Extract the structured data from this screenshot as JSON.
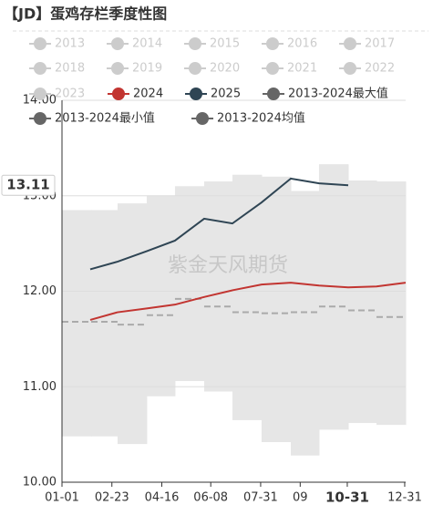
{
  "chart_data": {
    "type": "line",
    "title": "【JD】蛋鸡存栏季度性图",
    "watermark": "紫金天风期货",
    "legend_inactive": [
      "2013",
      "2014",
      "2015",
      "2016",
      "2017",
      "2018",
      "2019",
      "2020",
      "2021",
      "2022",
      "2023"
    ],
    "inactive_color": "#cccccc",
    "xlim": [
      0,
      365
    ],
    "xticks": [
      {
        "value": 0,
        "label": "01-01"
      },
      {
        "value": 53,
        "label": "02-23"
      },
      {
        "value": 106,
        "label": "04-16"
      },
      {
        "value": 158,
        "label": "06-08"
      },
      {
        "value": 211,
        "label": "07-31"
      },
      {
        "value": 253,
        "label": "09"
      },
      {
        "value": 303,
        "label": "10-31"
      },
      {
        "value": 364,
        "label": "12-31"
      }
    ],
    "ylim": [
      10,
      14
    ],
    "yticks": [
      {
        "value": 10,
        "label": "10.00"
      },
      {
        "value": 11,
        "label": "11.00"
      },
      {
        "value": 12,
        "label": "12.00"
      },
      {
        "value": 13,
        "label": "13.00"
      },
      {
        "value": 14,
        "label": "14.00"
      }
    ],
    "grid": true,
    "x": [
      30,
      59,
      90,
      120,
      151,
      181,
      212,
      243,
      273,
      304,
      334,
      365
    ],
    "bins": [
      0,
      31,
      59,
      90,
      120,
      151,
      181,
      212,
      243,
      273,
      304,
      334,
      365
    ],
    "series": [
      {
        "name": "2024",
        "color": "#c23531",
        "values": [
          11.7,
          11.78,
          11.82,
          11.86,
          11.94,
          12.01,
          12.07,
          12.09,
          12.06,
          12.04,
          12.05,
          12.09
        ]
      },
      {
        "name": "2025",
        "color": "#2f4554",
        "values": [
          12.23,
          12.31,
          12.42,
          12.53,
          12.76,
          12.71,
          12.93,
          13.18,
          13.13,
          13.11,
          null,
          null
        ]
      },
      {
        "name": "2013-2024最大值",
        "color": "#666666",
        "band_color": "#e6e6e6",
        "values": [
          12.85,
          12.85,
          12.92,
          13.0,
          13.1,
          13.15,
          13.22,
          13.2,
          13.05,
          13.33,
          13.16,
          13.15
        ]
      },
      {
        "name": "2013-2024最小值",
        "color": "#666666",
        "values": [
          10.48,
          10.48,
          10.4,
          10.9,
          11.06,
          10.95,
          10.65,
          10.42,
          10.28,
          10.55,
          10.62,
          10.6
        ]
      },
      {
        "name": "2013-2024均值",
        "color": "#666666",
        "line_color": "#aaaaaa",
        "values": [
          11.68,
          11.68,
          11.65,
          11.75,
          11.92,
          11.84,
          11.78,
          11.77,
          11.78,
          11.84,
          11.8,
          11.73
        ]
      }
    ],
    "annotation": {
      "value": 13.11,
      "label": "13.11"
    }
  }
}
